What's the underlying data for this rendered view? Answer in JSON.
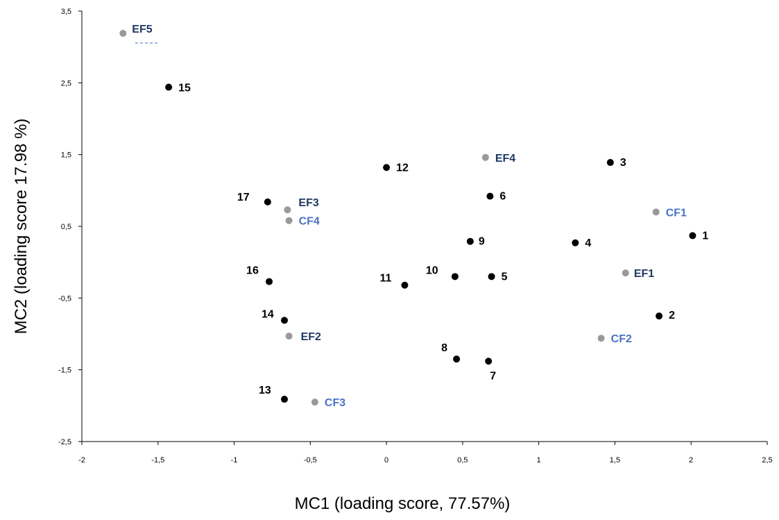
{
  "chart_data": {
    "type": "scatter",
    "xlabel": "MC1 (loading score, 77.57%)",
    "ylabel": "MC2 (loading score 17.98 %)",
    "xlim": [
      -2,
      2.5
    ],
    "ylim": [
      -2.5,
      3.5
    ],
    "x_ticks": [
      "-2",
      "-1,5",
      "-1",
      "-0,5",
      "0",
      "0,5",
      "1",
      "1,5",
      "2",
      "2,5"
    ],
    "y_ticks": [
      "3,5",
      "2,5",
      "1,5",
      "0,5",
      "-0,5",
      "-1,5",
      "-2,5"
    ],
    "grid": false,
    "colors": {
      "sample_marker": "#000000",
      "sample_label": "#000000",
      "variable_marker": "#999999",
      "EF_label": "#1f3864",
      "CF_label": "#4a72c4"
    },
    "series": [
      {
        "points": [
          {
            "label": "1",
            "x": 2.01,
            "y": 0.37
          },
          {
            "label": "2",
            "x": 1.79,
            "y": -0.75
          },
          {
            "label": "3",
            "x": 1.47,
            "y": 1.39
          },
          {
            "label": "4",
            "x": 1.24,
            "y": 0.27
          },
          {
            "label": "5",
            "x": 0.69,
            "y": -0.2
          },
          {
            "label": "6",
            "x": 0.68,
            "y": 0.92
          },
          {
            "label": "7",
            "x": 0.67,
            "y": -1.38
          },
          {
            "label": "8",
            "x": 0.46,
            "y": -1.35
          },
          {
            "label": "9",
            "x": 0.55,
            "y": 0.29
          },
          {
            "label": "10",
            "x": 0.45,
            "y": -0.2
          },
          {
            "label": "11",
            "x": 0.12,
            "y": -0.32
          },
          {
            "label": "12",
            "x": 0.0,
            "y": 1.32
          },
          {
            "label": "13",
            "x": -0.67,
            "y": -1.91
          },
          {
            "label": "14",
            "x": -0.67,
            "y": -0.81
          },
          {
            "label": "15",
            "x": -1.43,
            "y": 2.44
          },
          {
            "label": "16",
            "x": -0.77,
            "y": -0.27
          },
          {
            "label": "17",
            "x": -0.78,
            "y": 0.84
          }
        ]
      },
      {
        "points": [
          {
            "label": "EF1",
            "x": 1.57,
            "y": -0.15
          },
          {
            "label": "EF2",
            "x": -0.64,
            "y": -1.03
          },
          {
            "label": "EF3",
            "x": -0.65,
            "y": 0.73
          },
          {
            "label": "EF4",
            "x": 0.65,
            "y": 1.46
          },
          {
            "label": "EF5",
            "x": -1.73,
            "y": 3.19
          }
        ]
      },
      {
        "points": [
          {
            "label": "CF1",
            "x": 1.77,
            "y": 0.7
          },
          {
            "label": "CF2",
            "x": 1.41,
            "y": -1.06
          },
          {
            "label": "CF3",
            "x": -0.47,
            "y": -1.95
          },
          {
            "label": "CF4",
            "x": -0.64,
            "y": 0.58
          }
        ]
      }
    ]
  }
}
